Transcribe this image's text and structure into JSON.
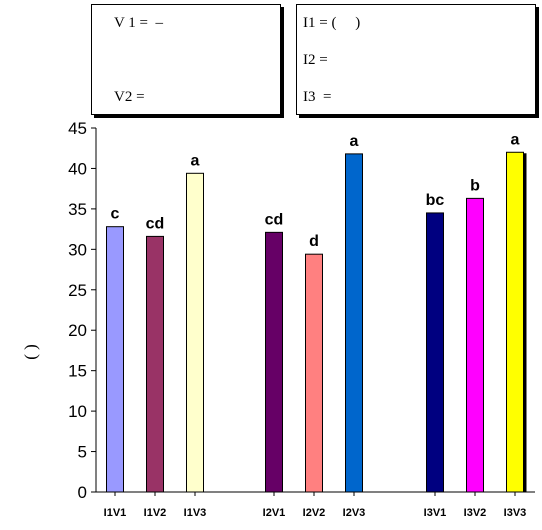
{
  "legend": {
    "left_lines": [
      "V 1 =  –",
      "V2 ="
    ],
    "right_lines": [
      "I1 = (     )",
      "I2 =",
      "I3  ="
    ]
  },
  "chart_data": {
    "type": "bar",
    "title": "",
    "xlabel": "",
    "ylabel": "(    )",
    "ylim": [
      0,
      45
    ],
    "yticks": [
      0,
      5,
      10,
      15,
      20,
      25,
      30,
      35,
      40,
      45
    ],
    "grid": false,
    "categories": [
      "I1V1",
      "I1V2",
      "I1V3",
      "I2V1",
      "I2V2",
      "I2V3",
      "I3V1",
      "I3V2",
      "I3V3"
    ],
    "values": [
      32.8,
      31.6,
      39.4,
      32.1,
      29.4,
      41.8,
      34.5,
      36.3,
      42.0
    ],
    "significance_labels": [
      "c",
      "cd",
      "a",
      "cd",
      "d",
      "a",
      "bc",
      "b",
      "a"
    ],
    "bar_colors": [
      "#9999ff",
      "#993366",
      "#ffffcc",
      "#660066",
      "#ff8080",
      "#0066cc",
      "#000080",
      "#ff00ff",
      "#ffff00"
    ]
  }
}
